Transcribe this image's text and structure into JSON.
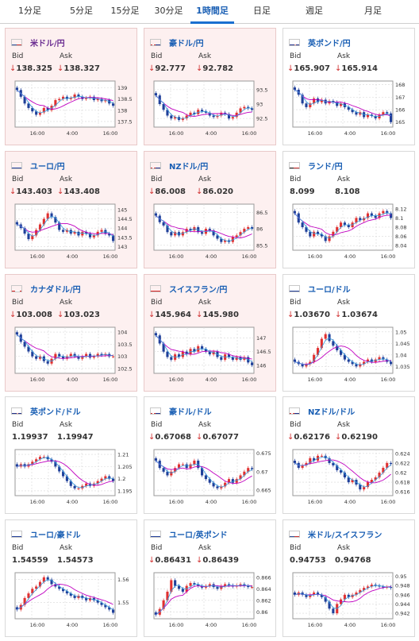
{
  "tabs": [
    {
      "label": "1分足",
      "active": false
    },
    {
      "label": "5分足",
      "active": false
    },
    {
      "label": "15分足",
      "active": false
    },
    {
      "label": "30分足",
      "active": false
    },
    {
      "label": "1時間足",
      "active": true
    },
    {
      "label": "日足",
      "active": false
    },
    {
      "label": "週足",
      "active": false
    },
    {
      "label": "月足",
      "active": false
    }
  ],
  "labels": {
    "bid": "Bid",
    "ask": "Ask"
  },
  "colors": {
    "accent": "#1a6fd0",
    "pair_link": "#1a5fb4",
    "down": "#d03030",
    "candle_up": "#e03030",
    "candle_down": "#1f3f99",
    "ma_line": "#c000c0",
    "signal_line": "#3399dd"
  },
  "pairs": [
    {
      "name": "米ドル/円",
      "flag": "us-flag",
      "bid": "138.325",
      "ask": "138.327",
      "down_arrows": true,
      "highlight": true,
      "name_purple": true,
      "yticks": [
        "139",
        "138.5",
        "138",
        "137.5"
      ],
      "xticks": [
        "16:00",
        "4:00",
        "16:00"
      ],
      "chart_data": {
        "type": "candlestick",
        "ylim": [
          137.25,
          139.3
        ],
        "close": [
          138.9,
          138.6,
          138.3,
          138.1,
          137.95,
          137.8,
          137.9,
          138.1,
          138.0,
          138.2,
          138.45,
          138.5,
          138.6,
          138.5,
          138.55,
          138.7,
          138.6,
          138.5,
          138.55,
          138.6,
          138.45,
          138.5,
          138.4,
          138.45,
          138.3,
          138.2
        ]
      }
    },
    {
      "name": "豪ドル/円",
      "flag": "au-flag",
      "bid": "92.777",
      "ask": "92.782",
      "down_arrows": true,
      "highlight": true,
      "yticks": [
        "93.5",
        "93",
        "92.5"
      ],
      "xticks": [
        "16:00",
        "4:00",
        "16:00"
      ],
      "chart_data": {
        "type": "candlestick",
        "ylim": [
          92.2,
          93.8
        ],
        "close": [
          93.3,
          93.0,
          92.8,
          92.6,
          92.5,
          92.55,
          92.45,
          92.5,
          92.6,
          92.7,
          92.65,
          92.8,
          92.75,
          92.7,
          92.6,
          92.55,
          92.6,
          92.7,
          92.65,
          92.5,
          92.55,
          92.7,
          92.85,
          92.9,
          92.85,
          92.8
        ]
      }
    },
    {
      "name": "英ポンド/円",
      "flag": "gb-flag",
      "bid": "165.907",
      "ask": "165.914",
      "down_arrows": true,
      "highlight": false,
      "yticks": [
        "168",
        "167",
        "166",
        "165"
      ],
      "xticks": [
        "16:00",
        "4:00",
        "16:00"
      ],
      "chart_data": {
        "type": "candlestick",
        "ylim": [
          164.6,
          168.3
        ],
        "close": [
          167.6,
          167.2,
          166.5,
          166.2,
          166.5,
          166.9,
          166.6,
          166.8,
          166.5,
          166.7,
          166.6,
          166.3,
          166.5,
          166.2,
          166.0,
          165.8,
          165.6,
          165.8,
          165.4,
          165.6,
          165.5,
          165.3,
          165.6,
          165.8,
          165.7,
          165.0
        ]
      }
    },
    {
      "name": "ユーロ/円",
      "flag": "eu-flag",
      "bid": "143.403",
      "ask": "143.408",
      "down_arrows": true,
      "highlight": true,
      "yticks": [
        "145",
        "144.5",
        "144",
        "143.5",
        "143"
      ],
      "xticks": [
        "16:00",
        "4:00",
        "16:00"
      ],
      "chart_data": {
        "type": "candlestick",
        "ylim": [
          142.8,
          145.3
        ],
        "close": [
          144.2,
          144.0,
          143.7,
          143.4,
          143.6,
          143.9,
          144.2,
          144.5,
          144.8,
          144.6,
          144.3,
          143.9,
          143.8,
          143.9,
          143.7,
          143.8,
          143.6,
          143.8,
          143.7,
          143.5,
          143.6,
          143.8,
          143.9,
          143.7,
          143.6,
          143.3
        ]
      }
    },
    {
      "name": "NZドル/円",
      "flag": "nz-flag",
      "bid": "86.008",
      "ask": "86.020",
      "down_arrows": true,
      "highlight": true,
      "yticks": [
        "86.5",
        "86",
        "85.5"
      ],
      "xticks": [
        "16:00",
        "4:00",
        "16:00"
      ],
      "chart_data": {
        "type": "candlestick",
        "ylim": [
          85.35,
          86.75
        ],
        "close": [
          86.4,
          86.2,
          86.1,
          85.9,
          85.8,
          85.9,
          85.8,
          85.9,
          86.0,
          85.95,
          86.05,
          85.9,
          85.85,
          86.0,
          85.95,
          85.8,
          85.7,
          85.6,
          85.65,
          85.6,
          85.75,
          85.8,
          85.9,
          86.0,
          86.05,
          86.0
        ]
      }
    },
    {
      "name": "ランド/円",
      "flag": "za-flag",
      "bid": "8.099",
      "ask": "8.108",
      "down_arrows": false,
      "highlight": false,
      "yticks": [
        "8.12",
        "8.1",
        "8.08",
        "8.06",
        "8.04"
      ],
      "xticks": [
        "16:00",
        "4:00",
        "16:00"
      ],
      "chart_data": {
        "type": "candlestick",
        "ylim": [
          8.03,
          8.13
        ],
        "close": [
          8.11,
          8.09,
          8.08,
          8.07,
          8.06,
          8.07,
          8.065,
          8.06,
          8.05,
          8.06,
          8.07,
          8.08,
          8.09,
          8.085,
          8.08,
          8.09,
          8.1,
          8.095,
          8.1,
          8.11,
          8.105,
          8.1,
          8.11,
          8.115,
          8.11,
          8.1
        ]
      }
    },
    {
      "name": "カナダドル/円",
      "flag": "ca-flag",
      "bid": "103.008",
      "ask": "103.023",
      "down_arrows": true,
      "highlight": true,
      "yticks": [
        "104",
        "103.5",
        "103",
        "102.5"
      ],
      "xticks": [
        "16:00",
        "4:00",
        "16:00"
      ],
      "chart_data": {
        "type": "candlestick",
        "ylim": [
          102.3,
          104.2
        ],
        "close": [
          103.9,
          103.6,
          103.4,
          103.2,
          103.0,
          102.9,
          103.0,
          102.8,
          102.7,
          102.9,
          103.1,
          103.0,
          102.9,
          103.0,
          103.1,
          103.0,
          102.9,
          103.0,
          103.1,
          102.95,
          103.0,
          103.1,
          103.05,
          103.1,
          103.0,
          103.0
        ]
      }
    },
    {
      "name": "スイスフラン/円",
      "flag": "ch-flag",
      "bid": "145.964",
      "ask": "145.980",
      "down_arrows": true,
      "highlight": true,
      "yticks": [
        "147",
        "146.5",
        "146"
      ],
      "xticks": [
        "16:00",
        "4:00",
        "16:00"
      ],
      "chart_data": {
        "type": "candlestick",
        "ylim": [
          145.7,
          147.4
        ],
        "close": [
          147.1,
          146.8,
          146.5,
          146.3,
          146.2,
          146.4,
          146.3,
          146.5,
          146.4,
          146.6,
          146.5,
          146.7,
          146.6,
          146.5,
          146.4,
          146.5,
          146.3,
          146.2,
          146.4,
          146.3,
          146.2,
          146.3,
          146.2,
          146.3,
          146.1,
          146.0
        ]
      }
    },
    {
      "name": "ユーロ/ドル",
      "flag": "eu-flag",
      "bid": "1.03670",
      "ask": "1.03674",
      "down_arrows": true,
      "highlight": false,
      "yticks": [
        "1.05",
        "1.045",
        "1.04",
        "1.035"
      ],
      "xticks": [
        "16:00",
        "4:00",
        "16:00"
      ],
      "chart_data": {
        "type": "candlestick",
        "ylim": [
          1.032,
          1.052
        ],
        "close": [
          1.037,
          1.036,
          1.035,
          1.036,
          1.037,
          1.04,
          1.043,
          1.047,
          1.049,
          1.046,
          1.044,
          1.042,
          1.04,
          1.038,
          1.037,
          1.036,
          1.035,
          1.036,
          1.037,
          1.038,
          1.037,
          1.038,
          1.039,
          1.038,
          1.037,
          1.036
        ]
      }
    },
    {
      "name": "英ポンド/ドル",
      "flag": "gb-us-flag",
      "bid": "1.19937",
      "ask": "1.19947",
      "down_arrows": false,
      "highlight": false,
      "yticks": [
        "1.21",
        "1.205",
        "1.2",
        "1.195"
      ],
      "xticks": [
        "16:00",
        "4:00",
        "16:00"
      ],
      "chart_data": {
        "type": "candlestick",
        "ylim": [
          1.193,
          1.212
        ],
        "close": [
          1.205,
          1.206,
          1.205,
          1.206,
          1.207,
          1.208,
          1.209,
          1.209,
          1.208,
          1.207,
          1.205,
          1.203,
          1.201,
          1.199,
          1.197,
          1.196,
          1.196,
          1.197,
          1.198,
          1.197,
          1.198,
          1.199,
          1.2,
          1.201,
          1.2,
          1.199
        ]
      }
    },
    {
      "name": "豪ドル/ドル",
      "flag": "au-us-flag",
      "bid": "0.67068",
      "ask": "0.67077",
      "down_arrows": true,
      "highlight": false,
      "yticks": [
        "0.675",
        "0.67",
        "0.665"
      ],
      "xticks": [
        "16:00",
        "4:00",
        "16:00"
      ],
      "chart_data": {
        "type": "candlestick",
        "ylim": [
          0.6635,
          0.676
        ],
        "close": [
          0.673,
          0.671,
          0.67,
          0.669,
          0.67,
          0.671,
          0.672,
          0.672,
          0.671,
          0.672,
          0.673,
          0.671,
          0.669,
          0.668,
          0.667,
          0.666,
          0.6655,
          0.666,
          0.667,
          0.668,
          0.667,
          0.668,
          0.669,
          0.67,
          0.671,
          0.6707
        ]
      }
    },
    {
      "name": "NZドル/ドル",
      "flag": "nz-us-flag",
      "bid": "0.62176",
      "ask": "0.62190",
      "down_arrows": true,
      "highlight": false,
      "yticks": [
        "0.624",
        "0.622",
        "0.62",
        "0.618",
        "0.616"
      ],
      "xticks": [
        "16:00",
        "4:00",
        "16:00"
      ],
      "chart_data": {
        "type": "candlestick",
        "ylim": [
          0.6152,
          0.6248
        ],
        "close": [
          0.622,
          0.621,
          0.6215,
          0.622,
          0.623,
          0.6225,
          0.6235,
          0.6235,
          0.623,
          0.622,
          0.6215,
          0.6205,
          0.62,
          0.619,
          0.618,
          0.6185,
          0.6175,
          0.6165,
          0.617,
          0.618,
          0.6185,
          0.619,
          0.62,
          0.621,
          0.622,
          0.6218
        ]
      }
    },
    {
      "name": "ユーロ/豪ドル",
      "flag": "eu-au-flag",
      "bid": "1.54559",
      "ask": "1.54573",
      "down_arrows": false,
      "highlight": false,
      "yticks": [
        "1.56",
        "1.55"
      ],
      "xticks": [
        "16:00",
        "4:00",
        "16:00"
      ],
      "chart_data": {
        "type": "candlestick",
        "ylim": [
          1.543,
          1.563
        ],
        "close": [
          1.547,
          1.549,
          1.552,
          1.554,
          1.556,
          1.557,
          1.559,
          1.561,
          1.56,
          1.558,
          1.557,
          1.556,
          1.555,
          1.554,
          1.553,
          1.552,
          1.553,
          1.552,
          1.551,
          1.552,
          1.551,
          1.55,
          1.549,
          1.548,
          1.547,
          1.5456
        ]
      }
    },
    {
      "name": "ユーロ/英ポンド",
      "flag": "eu-gb-flag",
      "bid": "0.86431",
      "ask": "0.86439",
      "down_arrows": true,
      "highlight": false,
      "yticks": [
        "0.866",
        "0.864",
        "0.862",
        "0.86"
      ],
      "xticks": [
        "16:00",
        "4:00",
        "16:00"
      ],
      "chart_data": {
        "type": "candlestick",
        "ylim": [
          0.8588,
          0.8668
        ],
        "close": [
          0.8595,
          0.8605,
          0.862,
          0.8635,
          0.8655,
          0.8645,
          0.864,
          0.8635,
          0.8645,
          0.865,
          0.8648,
          0.8645,
          0.8642,
          0.8645,
          0.8648,
          0.8643,
          0.864,
          0.8645,
          0.8648,
          0.8646,
          0.8644,
          0.8646,
          0.8648,
          0.8645,
          0.8643,
          0.8643
        ]
      }
    },
    {
      "name": "米ドル/スイスフラン",
      "flag": "us-ch-flag",
      "bid": "0.94753",
      "ask": "0.94768",
      "down_arrows": false,
      "highlight": false,
      "yticks": [
        "0.95",
        "0.948",
        "0.946",
        "0.944",
        "0.942"
      ],
      "xticks": [
        "16:00",
        "4:00",
        "16:00"
      ],
      "chart_data": {
        "type": "candlestick",
        "ylim": [
          0.9408,
          0.9508
        ],
        "close": [
          0.946,
          0.9465,
          0.946,
          0.9455,
          0.946,
          0.9465,
          0.946,
          0.9455,
          0.9445,
          0.943,
          0.942,
          0.944,
          0.945,
          0.946,
          0.9455,
          0.946,
          0.9465,
          0.947,
          0.9475,
          0.9478,
          0.9482,
          0.948,
          0.9478,
          0.9476,
          0.9477,
          0.9475
        ]
      }
    }
  ]
}
